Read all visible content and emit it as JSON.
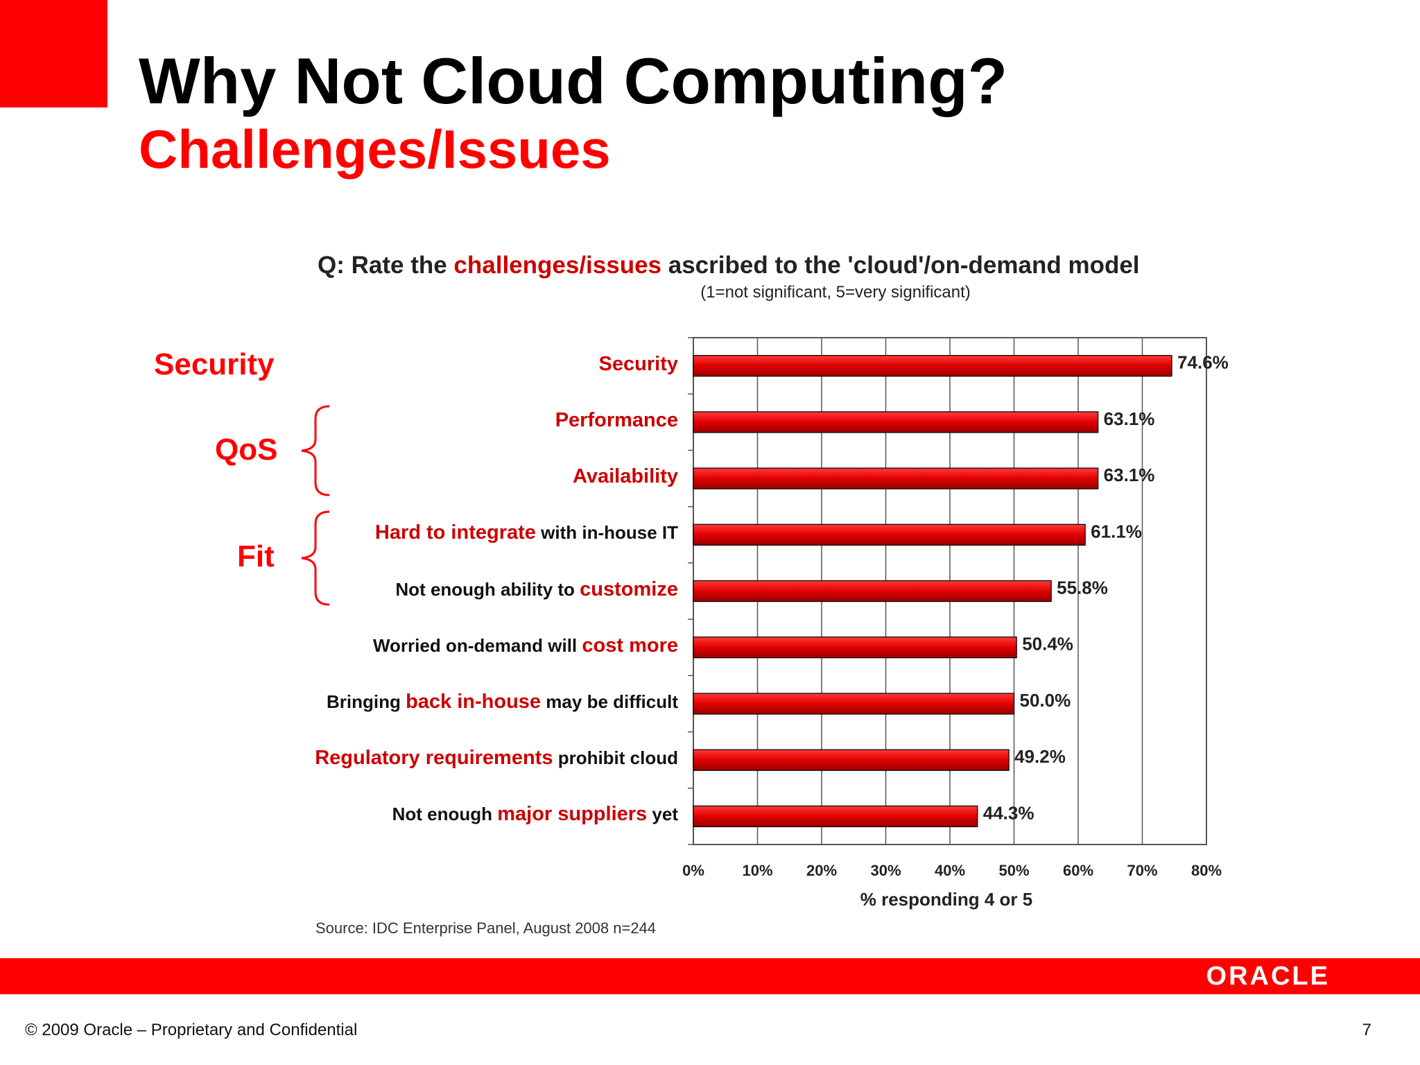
{
  "slide": {
    "title": "Why Not Cloud Computing?",
    "subtitle": "Challenges/Issues",
    "question_prefix": "Q: Rate the ",
    "question_highlight": "challenges/issues",
    "question_suffix": " ascribed to the 'cloud'/on-demand model",
    "scale_note": "(1=not significant, 5=very significant)",
    "groups": {
      "security": "Security",
      "qos": "QoS",
      "fit": "Fit"
    },
    "source": "Source: IDC Enterprise Panel, August 2008  n=244",
    "logo": "ORACLE",
    "copyright": "© 2009 Oracle – Proprietary and Confidential",
    "page_number": "7"
  },
  "colors": {
    "accent": "#ff0000",
    "bar": "#e00000",
    "bar_dark": "#a00000",
    "highlight": "#cc0000"
  },
  "chart_data": {
    "type": "bar",
    "orientation": "horizontal",
    "categories": [
      "Security",
      "Performance",
      "Availability",
      "Hard to integrate with in-house IT",
      "Not enough ability to customize",
      "Worried on-demand will cost more",
      "Bringing back in-house may be difficult",
      "Regulatory requirements prohibit cloud",
      "Not enough major suppliers yet"
    ],
    "category_parts": [
      [
        {
          "t": "Security",
          "hl": true
        }
      ],
      [
        {
          "t": "Performance",
          "hl": true
        }
      ],
      [
        {
          "t": "Availability",
          "hl": true
        }
      ],
      [
        {
          "t": "Hard to integrate",
          "hl": true
        },
        {
          "t": " with in-house IT",
          "hl": false
        }
      ],
      [
        {
          "t": "Not enough ability to ",
          "hl": false
        },
        {
          "t": "customize",
          "hl": true
        }
      ],
      [
        {
          "t": "Worried on-demand will ",
          "hl": false
        },
        {
          "t": "cost more",
          "hl": true
        }
      ],
      [
        {
          "t": "Bringing ",
          "hl": false
        },
        {
          "t": "back in-house",
          "hl": true
        },
        {
          "t": " may be difficult",
          "hl": false
        }
      ],
      [
        {
          "t": "Regulatory requirements",
          "hl": true
        },
        {
          "t": " prohibit cloud",
          "hl": false
        }
      ],
      [
        {
          "t": "Not enough ",
          "hl": false
        },
        {
          "t": "major suppliers",
          "hl": true
        },
        {
          "t": " yet",
          "hl": false
        }
      ]
    ],
    "values": [
      74.6,
      63.1,
      63.1,
      61.1,
      55.8,
      50.4,
      50.0,
      49.2,
      44.3
    ],
    "data_labels": [
      "74.6%",
      "63.1%",
      "63.1%",
      "61.1%",
      "55.8%",
      "50.4%",
      "50.0%",
      "49.2%",
      "44.3%"
    ],
    "xlabel": "% responding 4 or 5",
    "xlim": [
      0,
      80
    ],
    "xticks": [
      "0%",
      "10%",
      "20%",
      "30%",
      "40%",
      "50%",
      "60%",
      "70%",
      "80%"
    ],
    "grid": true
  }
}
